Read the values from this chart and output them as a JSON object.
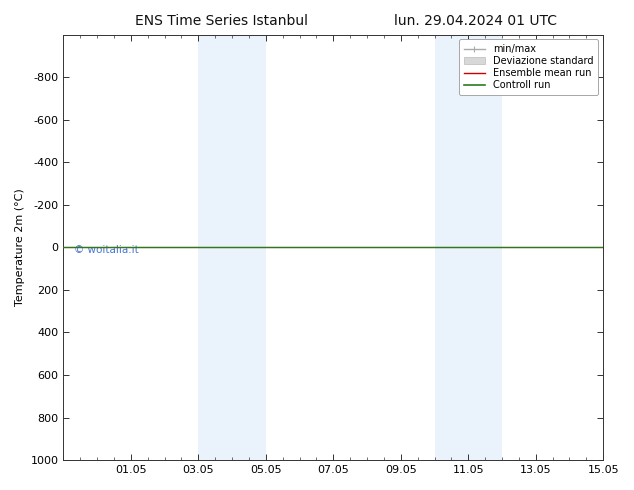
{
  "title_left": "ENS Time Series Istanbul",
  "title_right": "lun. 29.04.2024 01 UTC",
  "ylabel": "Temperature 2m (°C)",
  "watermark": "© woitalia.it",
  "xtick_labels": [
    "01.05",
    "03.05",
    "05.05",
    "07.05",
    "09.05",
    "11.05",
    "13.05",
    "15.05"
  ],
  "xtick_positions": [
    2,
    4,
    6,
    8,
    10,
    12,
    14,
    16
  ],
  "ylim_top": -1000,
  "ylim_bottom": 1000,
  "ytick_values": [
    -800,
    -600,
    -400,
    -200,
    0,
    200,
    400,
    600,
    800,
    1000
  ],
  "flat_line_y": 0,
  "green_line_color": "#2d7a1e",
  "red_line_color": "#cc0000",
  "shading_color": "#daeaf8",
  "shading_alpha": 0.55,
  "shaded_regions": [
    [
      4.0,
      5.0
    ],
    [
      5.0,
      6.0
    ],
    [
      11.0,
      12.0
    ],
    [
      12.0,
      13.0
    ]
  ],
  "legend_items": [
    {
      "label": "min/max",
      "color": "#aaaaaa",
      "lw": 1.0
    },
    {
      "label": "Deviazione standard",
      "color": "#cccccc",
      "lw": 4
    },
    {
      "label": "Ensemble mean run",
      "color": "#cc0000",
      "lw": 1.0
    },
    {
      "label": "Controll run",
      "color": "#2d7a1e",
      "lw": 1.2
    }
  ],
  "background_color": "#ffffff",
  "spine_color": "#333333",
  "title_fontsize": 10,
  "axis_fontsize": 8,
  "tick_fontsize": 8,
  "legend_fontsize": 7
}
